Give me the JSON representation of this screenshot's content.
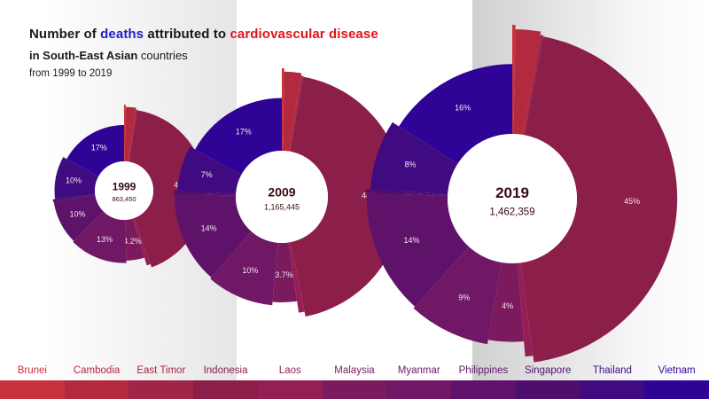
{
  "title": {
    "prefix": "Number of ",
    "highlight1": "deaths",
    "middle": " attributed to ",
    "highlight2": "cardiovascular disease",
    "line2_bold": "in South-East Asian",
    "line2_rest": " countries",
    "line3": "from 1999 to 2019"
  },
  "colors": {
    "highlight_blue": "#1f1fc8",
    "highlight_red": "#e0141e"
  },
  "chart_data": {
    "type": "pie",
    "subtype": "radial-rose-donut",
    "title": "Number of deaths attributed to cardiovascular disease in South-East Asian countries from 1999 to 2019",
    "countries": [
      "Brunei",
      "Cambodia",
      "East Timor",
      "Indonesia",
      "Laos",
      "Malaysia",
      "Myanmar",
      "Philippines",
      "Singapore",
      "Thailand",
      "Vietnam"
    ],
    "country_colors": [
      "#c8323a",
      "#b32a3e",
      "#a02648",
      "#8c1e4a",
      "#951f55",
      "#7c1a5e",
      "#701766",
      "#5e126a",
      "#4e0e6e",
      "#400a80",
      "#2e0396"
    ],
    "years": [
      {
        "year": "1999",
        "total": "863,450",
        "shares_pct": [
          0.3,
          2.0,
          0.3,
          42,
          0.8,
          4.2,
          13,
          10,
          0.6,
          10,
          17
        ],
        "labels": [
          "",
          "",
          "",
          "42%",
          "",
          "4.2%",
          "13%",
          "10%",
          "",
          "10%",
          "17%"
        ]
      },
      {
        "year": "2009",
        "total": "1,165,445",
        "shares_pct": [
          0.3,
          2.2,
          0.3,
          44,
          0.8,
          3.7,
          10,
          14,
          0.5,
          7,
          17
        ],
        "labels": [
          "",
          "",
          "",
          "44%",
          "",
          "3.7%",
          "10%",
          "14%",
          "",
          "7%",
          "17%"
        ]
      },
      {
        "year": "2019",
        "total": "1,462,359",
        "shares_pct": [
          0.3,
          2.4,
          0.3,
          45,
          0.8,
          4,
          9,
          14,
          0.4,
          8,
          16
        ],
        "labels": [
          "",
          "",
          "",
          "45%",
          "",
          "4%",
          "9%",
          "14%",
          "",
          "8%",
          "16%"
        ]
      }
    ],
    "legend_position": "bottom"
  }
}
